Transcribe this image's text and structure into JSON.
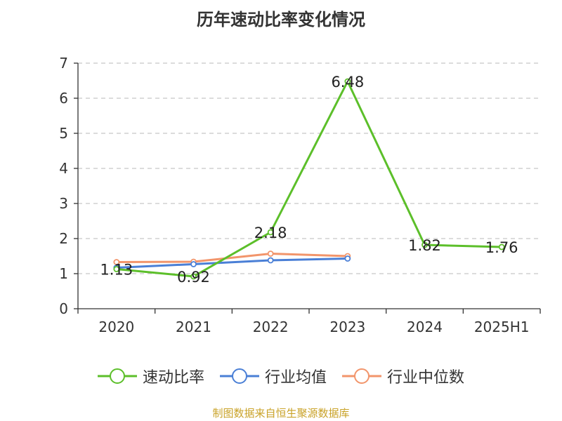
{
  "chart_data": {
    "type": "line",
    "title": "历年速动比率变化情况",
    "categories": [
      "2020",
      "2021",
      "2022",
      "2023",
      "2024",
      "2025H1"
    ],
    "ylim": [
      0,
      7
    ],
    "yticks": [
      "0",
      "1",
      "2",
      "3",
      "4",
      "5",
      "6",
      "7"
    ],
    "grid": true,
    "legend_position": "bottom",
    "series": [
      {
        "name": "速动比率",
        "color": "#5cbf2a",
        "values": [
          1.13,
          0.92,
          2.18,
          6.48,
          1.82,
          1.76
        ],
        "data_labels": [
          "1.13",
          "0.92",
          "2.18",
          "6.48",
          "1.82",
          "1.76"
        ]
      },
      {
        "name": "行业均值",
        "color": "#4a7fd6",
        "values": [
          1.17,
          1.27,
          1.38,
          1.43,
          null,
          null
        ]
      },
      {
        "name": "行业中位数",
        "color": "#f2956b",
        "values": [
          1.33,
          1.34,
          1.57,
          1.5,
          null,
          null
        ]
      }
    ]
  },
  "source": {
    "text": "制图数据来自恒生聚源数据库",
    "color": "#c9a227"
  }
}
